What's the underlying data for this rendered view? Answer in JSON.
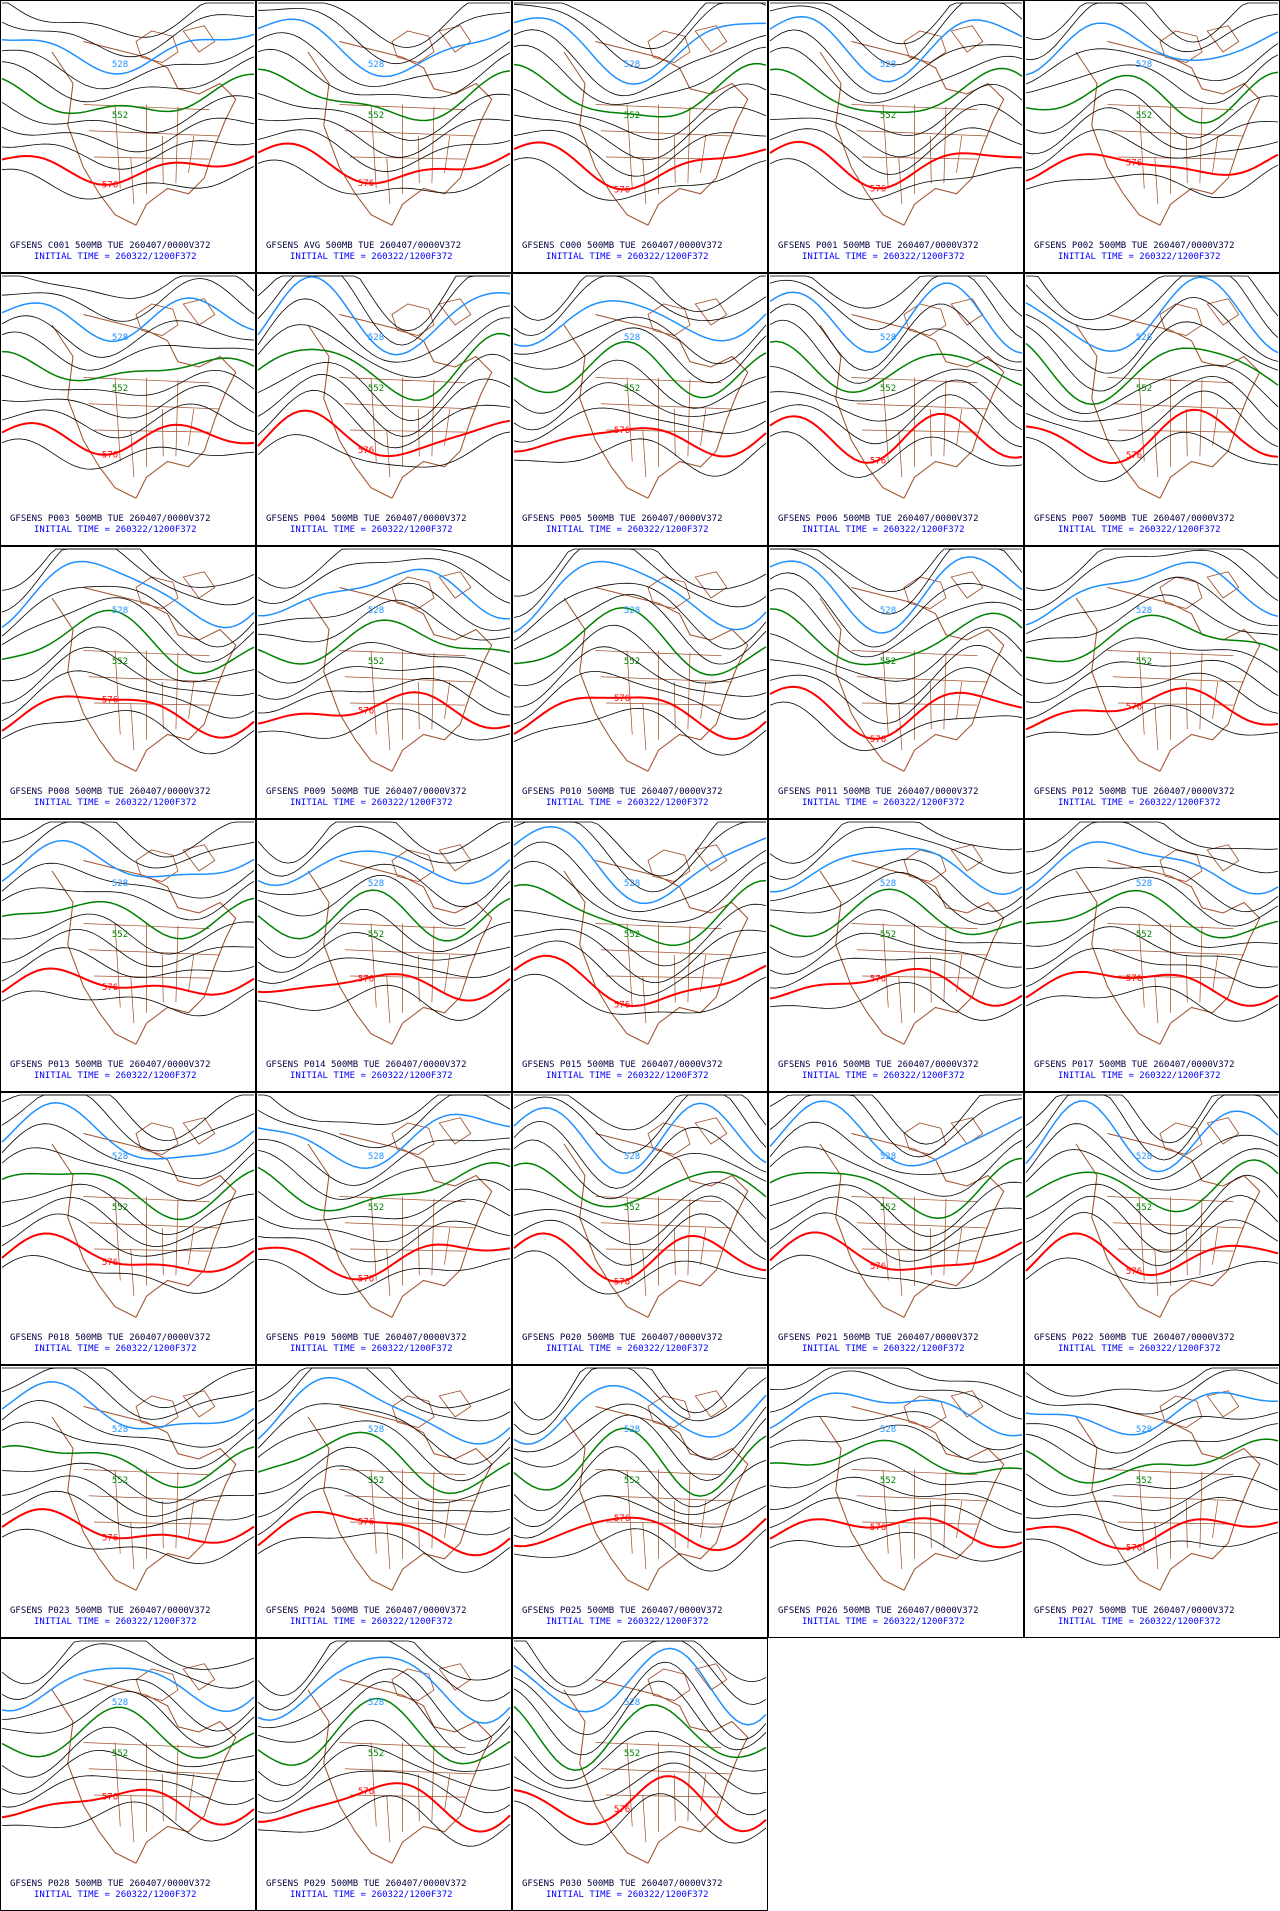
{
  "panels": [
    {
      "title": "GFSENS C001 500MB TUE 260407/0000V372",
      "init": "INITIAL TIME = 260322/1200F372",
      "labels": [
        "528",
        "552",
        "576"
      ]
    },
    {
      "title": "GFSENS AVG 500MB TUE 260407/0000V372",
      "init": "INITIAL TIME = 260322/1200F372",
      "labels": [
        "528",
        "552",
        "576"
      ]
    },
    {
      "title": "GFSENS C000 500MB TUE 260407/0000V372",
      "init": "INITIAL TIME = 260322/1200F372",
      "labels": [
        "528",
        "552",
        "576"
      ]
    },
    {
      "title": "GFSENS P001 500MB TUE 260407/0000V372",
      "init": "INITIAL TIME = 260322/1200F372",
      "labels": [
        "528",
        "552",
        "576"
      ]
    },
    {
      "title": "GFSENS P002 500MB TUE 260407/0000V372",
      "init": "INITIAL TIME = 260322/1200F372",
      "labels": [
        "528",
        "552",
        "576"
      ]
    },
    {
      "title": "GFSENS P003 500MB TUE 260407/0000V372",
      "init": "INITIAL TIME = 260322/1200F372",
      "labels": [
        "528",
        "552",
        "576"
      ]
    },
    {
      "title": "GFSENS P004 500MB TUE 260407/0000V372",
      "init": "INITIAL TIME = 260322/1200F372",
      "labels": [
        "528",
        "552",
        "576"
      ]
    },
    {
      "title": "GFSENS P005 500MB TUE 260407/0000V372",
      "init": "INITIAL TIME = 260322/1200F372",
      "labels": [
        "528",
        "552",
        "576"
      ]
    },
    {
      "title": "GFSENS P006 500MB TUE 260407/0000V372",
      "init": "INITIAL TIME = 260322/1200F372",
      "labels": [
        "528",
        "552",
        "576"
      ]
    },
    {
      "title": "GFSENS P007 500MB TUE 260407/0000V372",
      "init": "INITIAL TIME = 260322/1200F372",
      "labels": [
        "528",
        "552",
        "576"
      ]
    },
    {
      "title": "GFSENS P008 500MB TUE 260407/0000V372",
      "init": "INITIAL TIME = 260322/1200F372",
      "labels": [
        "528",
        "552",
        "576"
      ]
    },
    {
      "title": "GFSENS P009 500MB TUE 260407/0000V372",
      "init": "INITIAL TIME = 260322/1200F372",
      "labels": [
        "528",
        "552",
        "576"
      ]
    },
    {
      "title": "GFSENS P010 500MB TUE 260407/0000V372",
      "init": "INITIAL TIME = 260322/1200F372",
      "labels": [
        "528",
        "552",
        "576"
      ]
    },
    {
      "title": "GFSENS P011 500MB TUE 260407/0000V372",
      "init": "INITIAL TIME = 260322/1200F372",
      "labels": [
        "528",
        "552",
        "576"
      ]
    },
    {
      "title": "GFSENS P012 500MB TUE 260407/0000V372",
      "init": "INITIAL TIME = 260322/1200F372",
      "labels": [
        "528",
        "552",
        "576"
      ]
    },
    {
      "title": "GFSENS P013 500MB TUE 260407/0000V372",
      "init": "INITIAL TIME = 260322/1200F372",
      "labels": [
        "528",
        "552",
        "576"
      ]
    },
    {
      "title": "GFSENS P014 500MB TUE 260407/0000V372",
      "init": "INITIAL TIME = 260322/1200F372",
      "labels": [
        "528",
        "552",
        "576"
      ]
    },
    {
      "title": "GFSENS P015 500MB TUE 260407/0000V372",
      "init": "INITIAL TIME = 260322/1200F372",
      "labels": [
        "528",
        "552",
        "576"
      ]
    },
    {
      "title": "GFSENS P016 500MB TUE 260407/0000V372",
      "init": "INITIAL TIME = 260322/1200F372",
      "labels": [
        "528",
        "552",
        "576"
      ]
    },
    {
      "title": "GFSENS P017 500MB TUE 260407/0000V372",
      "init": "INITIAL TIME = 260322/1200F372",
      "labels": [
        "528",
        "552",
        "576"
      ]
    },
    {
      "title": "GFSENS P018 500MB TUE 260407/0000V372",
      "init": "INITIAL TIME = 260322/1200F372",
      "labels": [
        "528",
        "552",
        "576"
      ]
    },
    {
      "title": "GFSENS P019 500MB TUE 260407/0000V372",
      "init": "INITIAL TIME = 260322/1200F372",
      "labels": [
        "528",
        "552",
        "576"
      ]
    },
    {
      "title": "GFSENS P020 500MB TUE 260407/0000V372",
      "init": "INITIAL TIME = 260322/1200F372",
      "labels": [
        "528",
        "552",
        "576"
      ]
    },
    {
      "title": "GFSENS P021 500MB TUE 260407/0000V372",
      "init": "INITIAL TIME = 260322/1200F372",
      "labels": [
        "528",
        "552",
        "576"
      ]
    },
    {
      "title": "GFSENS P022 500MB TUE 260407/0000V372",
      "init": "INITIAL TIME = 260322/1200F372",
      "labels": [
        "528",
        "552",
        "576"
      ]
    },
    {
      "title": "GFSENS P023 500MB TUE 260407/0000V372",
      "init": "INITIAL TIME = 260322/1200F372",
      "labels": [
        "528",
        "552",
        "576"
      ]
    },
    {
      "title": "GFSENS P024 500MB TUE 260407/0000V372",
      "init": "INITIAL TIME = 260322/1200F372",
      "labels": [
        "528",
        "552",
        "576"
      ]
    },
    {
      "title": "GFSENS P025 500MB TUE 260407/0000V372",
      "init": "INITIAL TIME = 260322/1200F372",
      "labels": [
        "528",
        "552",
        "576"
      ]
    },
    {
      "title": "GFSENS P026 500MB TUE 260407/0000V372",
      "init": "INITIAL TIME = 260322/1200F372",
      "labels": [
        "528",
        "552",
        "576"
      ]
    },
    {
      "title": "GFSENS P027 500MB TUE 260407/0000V372",
      "init": "INITIAL TIME = 260322/1200F372",
      "labels": [
        "528",
        "552",
        "576"
      ]
    },
    {
      "title": "GFSENS P028 500MB TUE 260407/0000V372",
      "init": "INITIAL TIME = 260322/1200F372",
      "labels": [
        "528",
        "552",
        "576"
      ]
    },
    {
      "title": "GFSENS P029 500MB TUE 260407/0000V372",
      "init": "INITIAL TIME = 260322/1200F372",
      "labels": [
        "528",
        "552",
        "576"
      ]
    },
    {
      "title": "GFSENS P030 500MB TUE 260407/0000V372",
      "init": "INITIAL TIME = 260322/1200F372",
      "labels": [
        "528",
        "552",
        "576"
      ]
    }
  ]
}
